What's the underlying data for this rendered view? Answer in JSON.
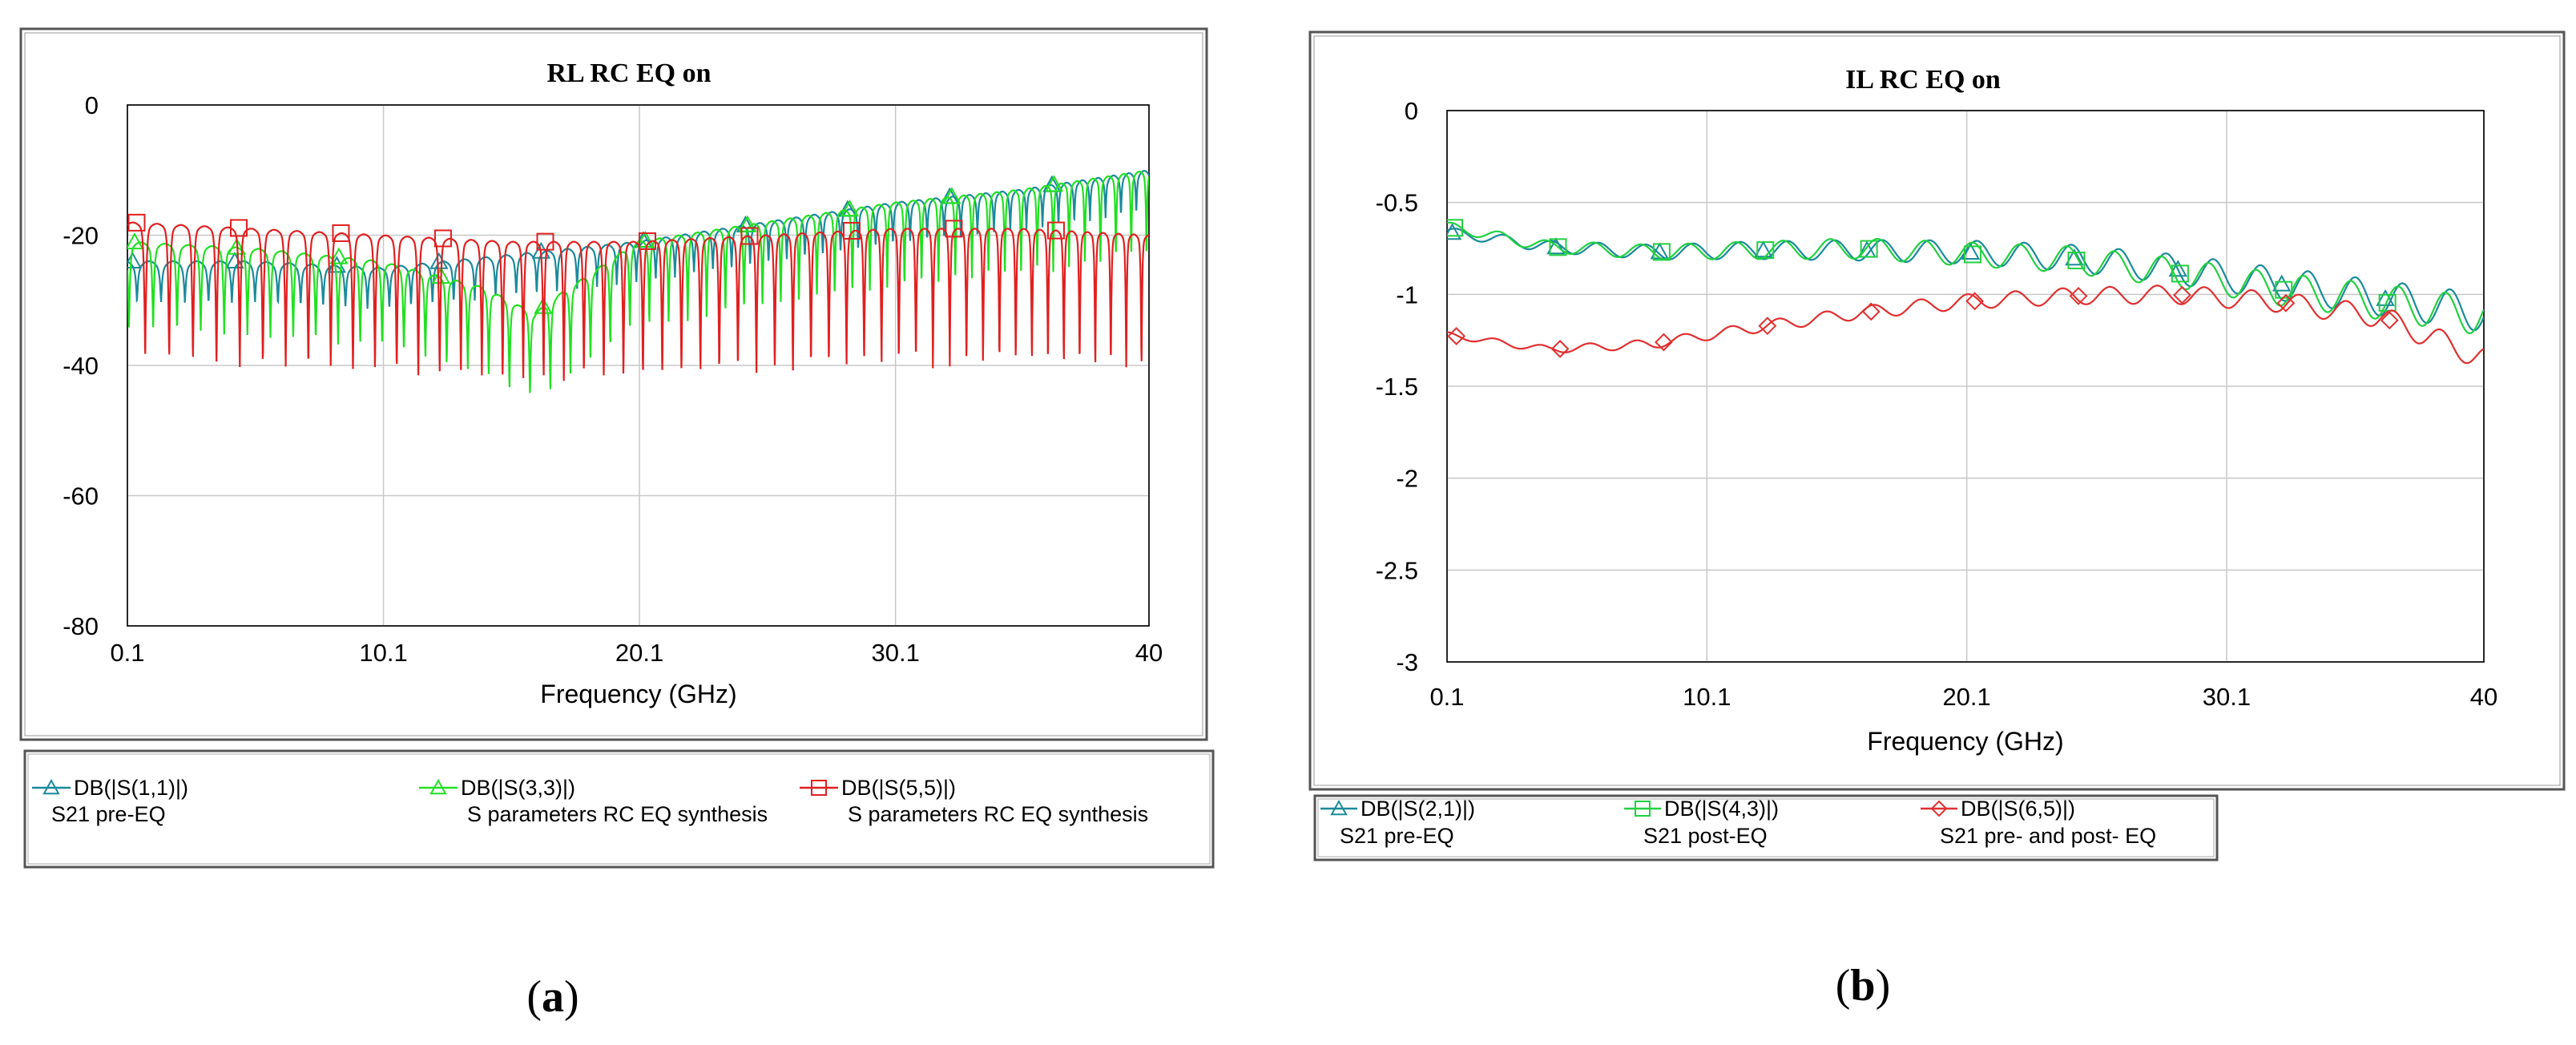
{
  "chart_data": [
    {
      "type": "line",
      "panel_label": "a",
      "title": "RL RC EQ on",
      "xlabel": "Frequency (GHz)",
      "ylabel": "",
      "xlim": [
        0.1,
        40
      ],
      "ylim": [
        -80,
        0
      ],
      "x_ticks": [
        0.1,
        10.1,
        20.1,
        30.1,
        40
      ],
      "x_tick_labels": [
        "0.1",
        "10.1",
        "20.1",
        "30.1",
        "40"
      ],
      "y_ticks": [
        0,
        -20,
        -40,
        -60,
        -80
      ],
      "y_tick_labels": [
        "0",
        "-20",
        "-40",
        "-60",
        "-80"
      ],
      "grid": true,
      "legend_position": "bottom",
      "series": [
        {
          "name": "DB(|S(1,1)|)",
          "description": "S21 pre-EQ",
          "color": "#1a8a9a",
          "marker": "triangle",
          "x": [
            0.1,
            5,
            10,
            15,
            20,
            25,
            30,
            35,
            40
          ],
          "values": [
            -24,
            -24,
            -25,
            -23,
            -21,
            -18,
            -15,
            -13,
            -10
          ],
          "dip_depth": 5
        },
        {
          "name": "DB(|S(3,3)|)",
          "description": "S parameters RC EQ synthesis",
          "color": "#22e022",
          "marker": "triangle",
          "x": [
            0.1,
            5,
            10,
            12,
            14,
            15,
            16,
            17,
            20,
            25,
            30,
            35,
            40
          ],
          "values": [
            -21,
            -22,
            -24,
            -26,
            -28,
            -30,
            -32,
            -29,
            -21,
            -18,
            -15,
            -13,
            -10
          ],
          "dip_depth": 12
        },
        {
          "name": "DB(|S(5,5)|)",
          "description": "S parameters RC EQ synthesis",
          "color": "#e02020",
          "marker": "square",
          "x": [
            0.1,
            5,
            10,
            15,
            20,
            25,
            30,
            35,
            40
          ],
          "values": [
            -18,
            -19,
            -20,
            -21,
            -21,
            -20,
            -19,
            -19,
            -20
          ],
          "dip_depth": 20
        }
      ]
    },
    {
      "type": "line",
      "panel_label": "b",
      "title": "IL RC EQ on",
      "xlabel": "Frequency (GHz)",
      "ylabel": "",
      "xlim": [
        0.1,
        40
      ],
      "ylim": [
        -3,
        0
      ],
      "x_ticks": [
        0.1,
        10.1,
        20.1,
        30.1,
        40
      ],
      "x_tick_labels": [
        "0.1",
        "10.1",
        "20.1",
        "30.1",
        "40"
      ],
      "y_ticks": [
        0,
        -0.5,
        -1,
        -1.5,
        -2,
        -2.5,
        -3
      ],
      "y_tick_labels": [
        "0",
        "-0.5",
        "-1",
        "-1.5",
        "-2",
        "-2.5",
        "-3"
      ],
      "grid": true,
      "legend_position": "bottom",
      "series": [
        {
          "name": "DB(|S(2,1)|)",
          "description": "S21 pre-EQ",
          "color": "#1a8a9a",
          "marker": "triangle",
          "x": [
            0.1,
            4,
            8,
            12,
            16,
            20,
            24,
            28,
            32,
            36,
            40
          ],
          "values": [
            -0.66,
            -0.74,
            -0.77,
            -0.76,
            -0.76,
            -0.77,
            -0.8,
            -0.86,
            -0.94,
            -1.02,
            -1.1
          ],
          "ripple": 0.08
        },
        {
          "name": "DB(|S(4,3)|)",
          "description": "S21 post-EQ",
          "color": "#22d040",
          "marker": "square",
          "x": [
            0.1,
            4,
            8,
            12,
            16,
            20,
            24,
            28,
            32,
            36,
            40
          ],
          "values": [
            -0.63,
            -0.74,
            -0.77,
            -0.76,
            -0.75,
            -0.78,
            -0.81,
            -0.88,
            -0.97,
            -1.04,
            -1.12
          ],
          "ripple": 0.08
        },
        {
          "name": "DB(|S(6,5)|)",
          "description": "S21 pre- and post- EQ",
          "color": "#e03030",
          "marker": "diamond",
          "x": [
            0.1,
            4,
            8,
            12,
            16,
            20,
            24,
            28,
            32,
            36,
            40
          ],
          "values": [
            -1.22,
            -1.3,
            -1.27,
            -1.18,
            -1.1,
            -1.04,
            -1.01,
            -1.0,
            -1.04,
            -1.12,
            -1.35
          ],
          "ripple": 0.05
        }
      ]
    }
  ]
}
